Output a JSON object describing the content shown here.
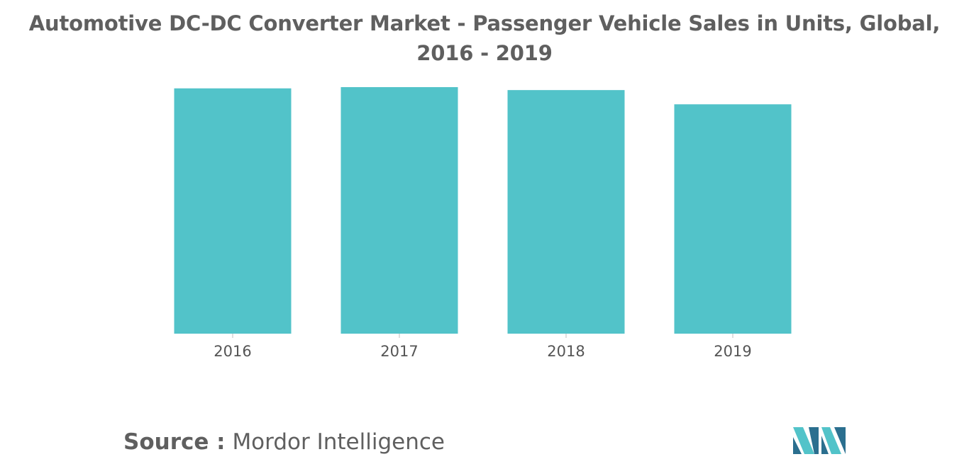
{
  "title": "Automotive DC-DC Converter Market - Passenger Vehicle Sales in Units, Global, 2016 - 2019",
  "source": {
    "label": "Source :",
    "value": "Mordor Intelligence"
  },
  "colors": {
    "bar": "#52c3c9",
    "axis_text": "#555555",
    "title_text": "#5f5f5f",
    "logo_dark": "#2b6f8f",
    "logo_light": "#52c3c9"
  },
  "logo": {
    "icon": "mordor-intelligence-logo-icon"
  },
  "chart_data": {
    "type": "bar",
    "title": "Automotive DC-DC Converter Market - Passenger Vehicle Sales in Units, Global, 2016 - 2019",
    "categories": [
      "2016",
      "2017",
      "2018",
      "2019"
    ],
    "values": [
      100,
      100.5,
      99.3,
      93.5
    ],
    "xlabel": "",
    "ylabel": "",
    "ylim": [
      0,
      100.5
    ],
    "grid": false,
    "legend": "none"
  }
}
